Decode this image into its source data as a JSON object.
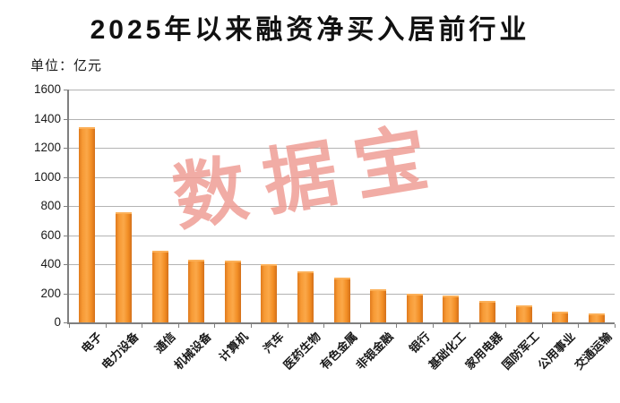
{
  "title": "2025年以来融资净买入居前行业",
  "unit_label": "单位：亿元",
  "watermark": {
    "text": "数据宝",
    "color": "#ef9a92"
  },
  "chart_data": {
    "type": "bar",
    "title": "2025年以来融资净买入居前行业",
    "subtitle": "单位：亿元",
    "categories": [
      "电子",
      "电力设备",
      "通信",
      "机械设备",
      "计算机",
      "汽车",
      "医药生物",
      "有色金属",
      "非银金融",
      "银行",
      "基础化工",
      "家用电器",
      "国防军工",
      "公用事业",
      "交通运输"
    ],
    "values": [
      1340,
      760,
      490,
      430,
      425,
      400,
      350,
      305,
      230,
      200,
      185,
      145,
      115,
      75,
      60
    ],
    "xlabel": "",
    "ylabel": "亿元",
    "ylim": [
      0,
      1600
    ],
    "ytick_step": 200,
    "grid": true,
    "legend": "none",
    "bar_color": "#f79433",
    "xlabel_rotation": 45
  }
}
